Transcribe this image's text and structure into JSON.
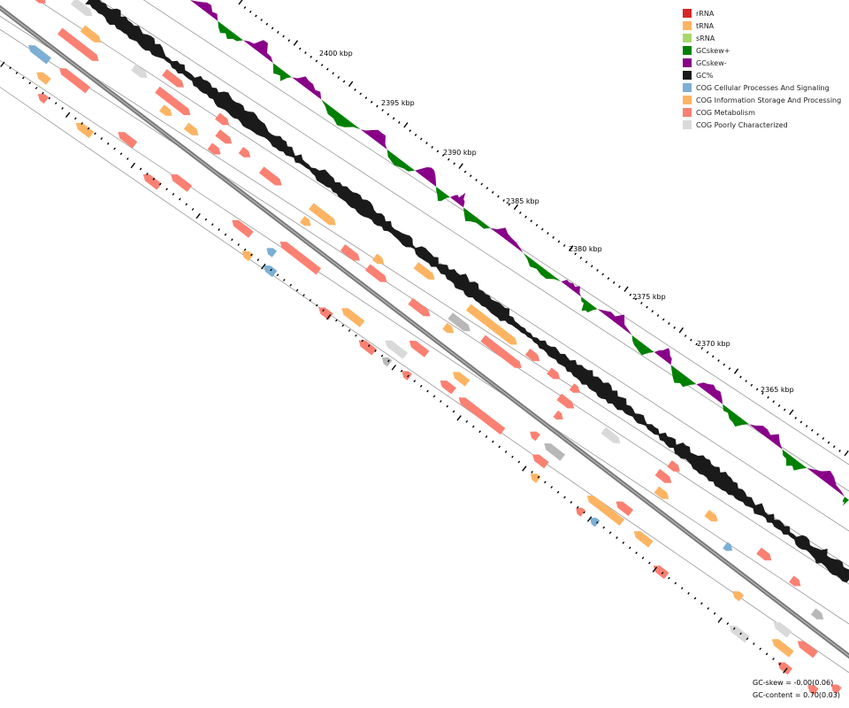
{
  "chart_data": {
    "type": "genome-map",
    "position_unit": "kbp",
    "ticks": [
      "2400 kbp",
      "2395 kbp",
      "2390 kbp",
      "2385 kbp",
      "2380 kbp",
      "2375 kbp",
      "2370 kbp",
      "2365 kbp"
    ],
    "tracks": [
      "GC skew",
      "GC content",
      "reverse strand features",
      "forward strand features"
    ],
    "legend": [
      {
        "label": "rRNA",
        "color": "#d62728"
      },
      {
        "label": "tRNA",
        "color": "#fdb462"
      },
      {
        "label": "sRNA",
        "color": "#a6d96a"
      },
      {
        "label": "GCskew+",
        "color": "#008000"
      },
      {
        "label": "GCskew-",
        "color": "#880088"
      },
      {
        "label": "GC%",
        "color": "#1a1a1a"
      },
      {
        "label": "COG Cellular Processes And Signaling",
        "color": "#7bafd4"
      },
      {
        "label": "COG Information Storage And Processing",
        "color": "#fdb462"
      },
      {
        "label": "COG Metabolism",
        "color": "#fa8072"
      },
      {
        "label": "COG Poorly Characterized",
        "color": "#d9d9d9"
      }
    ]
  },
  "stats": {
    "gc_skew": "GC-skew = -0.00(0.06)",
    "gc_content": "GC-content = 0.70(0.03)"
  }
}
